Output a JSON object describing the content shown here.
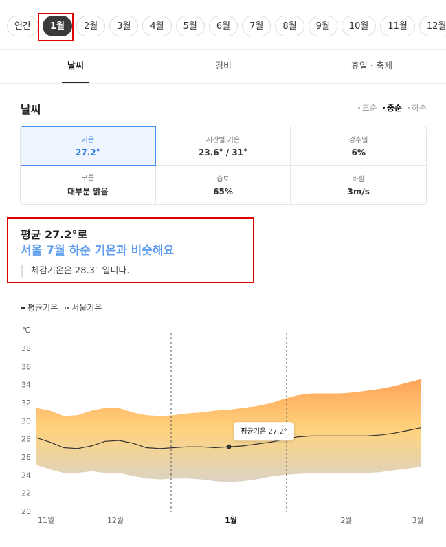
{
  "months": [
    "연간",
    "1월",
    "2월",
    "3월",
    "4월",
    "5월",
    "6월",
    "7월",
    "8월",
    "9월",
    "10월",
    "11월",
    "12월"
  ],
  "selected_month": 1,
  "tabs": [
    "날씨",
    "경비",
    "휴일 · 축제"
  ],
  "active_tab": 0,
  "section_title": "날씨",
  "periods": [
    "초순",
    "중순",
    "하순"
  ],
  "active_period": 1,
  "cards": [
    {
      "label": "기온",
      "value": "27.2°"
    },
    {
      "label": "시간별 기온",
      "value": "23.6° / 31°"
    },
    {
      "label": "강수일",
      "value": "6%"
    },
    {
      "label": "구름",
      "value": "대부분 맑음"
    },
    {
      "label": "습도",
      "value": "65%"
    },
    {
      "label": "바람",
      "value": "3m/s"
    }
  ],
  "selected_card": 0,
  "summary": {
    "headline": "평균 27.2°로",
    "comparison": "서울 7월 하순 기온과 비슷해요",
    "note": "체감기온은 28.3° 입니다."
  },
  "chart_data": {
    "type": "line",
    "y_unit": "℃",
    "x": [
      0,
      1,
      2,
      3,
      4,
      5,
      6,
      7,
      8,
      9,
      10,
      11,
      12,
      13,
      14,
      15,
      16,
      17,
      18,
      19,
      20,
      21,
      22,
      23,
      24,
      25,
      26,
      27,
      28
    ],
    "xlim": [
      0,
      28
    ],
    "xticks": [
      {
        "value": 0.7,
        "label": "11월"
      },
      {
        "value": 5.75,
        "label": "12월"
      },
      {
        "value": 14.15,
        "label": "1월"
      },
      {
        "value": 22.55,
        "label": "2월"
      },
      {
        "value": 27.75,
        "label": "3월"
      }
    ],
    "ylim": [
      20,
      38
    ],
    "yticks": [
      20,
      22,
      24,
      26,
      28,
      30,
      32,
      34,
      36,
      38
    ],
    "series": [
      {
        "name": "평균기온",
        "color": "#333333",
        "values": [
          28.2,
          27.7,
          27.1,
          27.0,
          27.3,
          27.8,
          27.9,
          27.6,
          27.1,
          27.0,
          27.1,
          27.2,
          27.2,
          27.1,
          27.2,
          27.3,
          27.5,
          27.7,
          28.0,
          28.3,
          28.4,
          28.4,
          28.4,
          28.4,
          28.4,
          28.5,
          28.7,
          29.0,
          29.3
        ]
      },
      {
        "name": "서울기온",
        "color": "#666666"
      }
    ],
    "band": {
      "high": [
        31.5,
        31.2,
        30.6,
        30.7,
        31.2,
        31.5,
        31.5,
        31.0,
        30.7,
        30.6,
        30.7,
        30.9,
        31.0,
        31.2,
        31.3,
        31.5,
        31.7,
        32.0,
        32.5,
        32.9,
        33.1,
        33.1,
        33.1,
        33.2,
        33.4,
        33.6,
        33.9,
        34.3,
        34.7
      ],
      "low": [
        25.2,
        24.7,
        24.3,
        24.3,
        24.5,
        24.3,
        24.3,
        24.0,
        23.7,
        23.6,
        23.7,
        23.7,
        23.6,
        23.4,
        23.3,
        23.4,
        23.6,
        23.9,
        24.1,
        24.2,
        24.3,
        24.3,
        24.3,
        24.3,
        24.3,
        24.4,
        24.6,
        24.8,
        25.0
      ],
      "colors": [
        "#ffa257",
        "#ffd37d",
        "#ddd3c2"
      ]
    },
    "highlight": 14,
    "annotation": "평균기온 27.2°"
  }
}
